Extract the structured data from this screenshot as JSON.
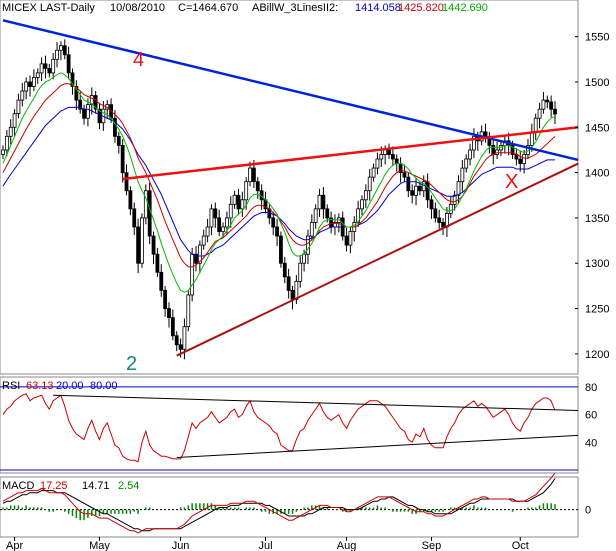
{
  "header": {
    "symbol": "MICEX LAST-Daily",
    "date": "10/08/2010",
    "close_label": "C=1464.670",
    "indicator_name": "ABillW_3LinesII2:",
    "ind_val_1": "1414.058",
    "ind_val_2": "1425.820",
    "ind_val_3": "1442.690"
  },
  "annotations": {
    "label_4": "4",
    "label_2": "2",
    "label_x": "X"
  },
  "rsi": {
    "title": "RSI",
    "v1": "63.13",
    "v2": "20.00",
    "v3": "80.00"
  },
  "macd": {
    "title": "MACD",
    "v1": "17.25",
    "v2": "14.71",
    "v3": "2.54"
  },
  "colors": {
    "candle": "#000000",
    "ma_blue": "#0000cc",
    "ma_red": "#cc0000",
    "ma_green": "#00bb00",
    "trend_blue": "#0022dd",
    "trend_red": "#ee1111",
    "support": "#aa1111",
    "label_teal": "#118888"
  },
  "chart_data": [
    {
      "type": "candlestick",
      "name": "MICEX LAST-Daily",
      "x_ticks": [
        "Apr",
        "May",
        "Jun",
        "Jul",
        "Aug",
        "Sep",
        "Oct"
      ],
      "y_ticks": [
        1200,
        1250,
        1300,
        1350,
        1400,
        1450,
        1500,
        1550
      ],
      "ylim": [
        1180,
        1575
      ],
      "close": [
        1425,
        1440,
        1450,
        1465,
        1480,
        1490,
        1500,
        1495,
        1505,
        1510,
        1520,
        1515,
        1510,
        1525,
        1535,
        1540,
        1530,
        1510,
        1495,
        1480,
        1470,
        1460,
        1475,
        1485,
        1470,
        1455,
        1470,
        1475,
        1460,
        1440,
        1430,
        1400,
        1380,
        1360,
        1340,
        1300,
        1350,
        1380,
        1330,
        1310,
        1290,
        1270,
        1250,
        1240,
        1220,
        1210,
        1205,
        1230,
        1265,
        1310,
        1300,
        1320,
        1330,
        1340,
        1360,
        1350,
        1335,
        1340,
        1350,
        1365,
        1375,
        1360,
        1370,
        1390,
        1405,
        1390,
        1380,
        1370,
        1360,
        1350,
        1340,
        1330,
        1300,
        1285,
        1270,
        1260,
        1280,
        1300,
        1310,
        1330,
        1345,
        1360,
        1375,
        1360,
        1350,
        1340,
        1345,
        1350,
        1330,
        1320,
        1335,
        1345,
        1360,
        1370,
        1380,
        1395,
        1405,
        1415,
        1420,
        1425,
        1420,
        1415,
        1410,
        1400,
        1395,
        1380,
        1375,
        1385,
        1380,
        1390,
        1370,
        1360,
        1350,
        1345,
        1340,
        1355,
        1365,
        1375,
        1390,
        1405,
        1415,
        1425,
        1440,
        1435,
        1445,
        1440,
        1430,
        1420,
        1425,
        1430,
        1435,
        1430,
        1420,
        1415,
        1410,
        1420,
        1430,
        1445,
        1460,
        1470,
        1480,
        1478,
        1470,
        1464.67
      ],
      "ma_green": [
        1410,
        1420,
        1430,
        1440,
        1450,
        1460,
        1468,
        1475,
        1482,
        1490,
        1496,
        1500,
        1502,
        1505,
        1508,
        1510,
        1508,
        1504,
        1498,
        1492,
        1486,
        1480,
        1478,
        1476,
        1472,
        1468,
        1466,
        1464,
        1460,
        1454,
        1448,
        1440,
        1430,
        1418,
        1404,
        1390,
        1380,
        1372,
        1360,
        1348,
        1336,
        1322,
        1310,
        1298,
        1288,
        1278,
        1270,
        1268,
        1270,
        1276,
        1282,
        1290,
        1298,
        1306,
        1315,
        1322,
        1326,
        1330,
        1336,
        1342,
        1350,
        1354,
        1358,
        1364,
        1372,
        1376,
        1376,
        1374,
        1370,
        1366,
        1360,
        1354,
        1344,
        1334,
        1322,
        1312,
        1308,
        1308,
        1310,
        1316,
        1322,
        1330,
        1340,
        1346,
        1348,
        1348,
        1348,
        1348,
        1344,
        1340,
        1340,
        1342,
        1346,
        1352,
        1358,
        1366,
        1374,
        1382,
        1390,
        1398,
        1404,
        1408,
        1410,
        1410,
        1408,
        1404,
        1398,
        1394,
        1390,
        1388,
        1384,
        1378,
        1372,
        1366,
        1360,
        1358,
        1358,
        1360,
        1366,
        1374,
        1382,
        1392,
        1402,
        1410,
        1418,
        1424,
        1428,
        1428,
        1428,
        1428,
        1430,
        1430,
        1428,
        1426,
        1424,
        1422,
        1424,
        1428,
        1434,
        1442,
        1450,
        1456,
        1460,
        1462
      ],
      "ma_red": [
        1400,
        1408,
        1416,
        1424,
        1432,
        1440,
        1448,
        1455,
        1462,
        1468,
        1474,
        1480,
        1484,
        1488,
        1492,
        1496,
        1498,
        1498,
        1496,
        1494,
        1490,
        1486,
        1484,
        1482,
        1480,
        1476,
        1474,
        1472,
        1468,
        1464,
        1460,
        1454,
        1446,
        1438,
        1428,
        1416,
        1408,
        1400,
        1390,
        1380,
        1370,
        1358,
        1346,
        1336,
        1326,
        1316,
        1306,
        1300,
        1296,
        1296,
        1298,
        1302,
        1306,
        1312,
        1318,
        1324,
        1326,
        1328,
        1332,
        1336,
        1340,
        1344,
        1348,
        1352,
        1358,
        1362,
        1364,
        1364,
        1362,
        1360,
        1356,
        1352,
        1346,
        1340,
        1332,
        1326,
        1322,
        1320,
        1320,
        1322,
        1326,
        1330,
        1336,
        1340,
        1342,
        1344,
        1344,
        1344,
        1342,
        1340,
        1340,
        1340,
        1342,
        1346,
        1350,
        1356,
        1362,
        1368,
        1376,
        1384,
        1390,
        1396,
        1400,
        1402,
        1402,
        1400,
        1398,
        1396,
        1394,
        1392,
        1390,
        1386,
        1382,
        1378,
        1374,
        1370,
        1368,
        1368,
        1370,
        1374,
        1380,
        1388,
        1396,
        1402,
        1408,
        1414,
        1418,
        1420,
        1422,
        1422,
        1422,
        1422,
        1422,
        1420,
        1418,
        1416,
        1416,
        1418,
        1420,
        1424,
        1428,
        1432,
        1436,
        1440
      ],
      "ma_blue": [
        1385,
        1392,
        1398,
        1404,
        1410,
        1416,
        1422,
        1428,
        1434,
        1440,
        1446,
        1452,
        1456,
        1460,
        1464,
        1468,
        1470,
        1472,
        1472,
        1472,
        1472,
        1470,
        1470,
        1468,
        1466,
        1464,
        1462,
        1460,
        1458,
        1456,
        1452,
        1448,
        1442,
        1436,
        1428,
        1420,
        1414,
        1408,
        1400,
        1392,
        1384,
        1376,
        1366,
        1356,
        1346,
        1336,
        1326,
        1320,
        1314,
        1310,
        1308,
        1308,
        1308,
        1310,
        1312,
        1316,
        1318,
        1320,
        1324,
        1328,
        1332,
        1336,
        1340,
        1344,
        1348,
        1352,
        1354,
        1356,
        1356,
        1356,
        1354,
        1352,
        1348,
        1344,
        1338,
        1334,
        1330,
        1328,
        1326,
        1326,
        1328,
        1330,
        1334,
        1336,
        1338,
        1340,
        1340,
        1340,
        1340,
        1340,
        1340,
        1340,
        1342,
        1344,
        1346,
        1350,
        1354,
        1358,
        1364,
        1370,
        1376,
        1380,
        1384,
        1388,
        1390,
        1390,
        1390,
        1390,
        1388,
        1386,
        1384,
        1382,
        1380,
        1378,
        1376,
        1374,
        1374,
        1374,
        1376,
        1378,
        1382,
        1386,
        1390,
        1394,
        1398,
        1400,
        1402,
        1404,
        1406,
        1406,
        1406,
        1406,
        1406,
        1404,
        1404,
        1404,
        1404,
        1406,
        1408,
        1410,
        1412,
        1414,
        1414,
        1414
      ],
      "trendlines": [
        {
          "name": "4",
          "color": "blue",
          "from": [
            0,
            1568
          ],
          "to": [
            149,
            1414
          ]
        },
        {
          "name": "resistance",
          "color": "red",
          "from": [
            31,
            1393
          ],
          "to": [
            149,
            1450
          ]
        },
        {
          "name": "2 / X",
          "color": "support",
          "from": [
            45,
            1198
          ],
          "to": [
            149,
            1410
          ]
        }
      ]
    },
    {
      "type": "line",
      "name": "RSI",
      "y_ticks": [
        40,
        60,
        80
      ],
      "ylim": [
        20,
        85
      ],
      "levels": [
        20,
        80
      ],
      "values": [
        60,
        64,
        66,
        70,
        72,
        74,
        75,
        70,
        72,
        73,
        74,
        68,
        64,
        70,
        72,
        74,
        66,
        56,
        50,
        46,
        44,
        42,
        50,
        56,
        48,
        42,
        50,
        54,
        46,
        38,
        36,
        30,
        28,
        27,
        27,
        26,
        40,
        48,
        38,
        34,
        32,
        30,
        30,
        29,
        28,
        28,
        28,
        34,
        44,
        54,
        50,
        54,
        56,
        58,
        62,
        58,
        54,
        56,
        58,
        62,
        64,
        58,
        60,
        66,
        70,
        62,
        58,
        56,
        54,
        52,
        48,
        46,
        38,
        36,
        34,
        34,
        42,
        48,
        50,
        56,
        60,
        64,
        68,
        62,
        58,
        56,
        58,
        60,
        54,
        50,
        56,
        60,
        64,
        66,
        68,
        70,
        70,
        70,
        68,
        66,
        62,
        58,
        54,
        50,
        48,
        42,
        40,
        46,
        44,
        50,
        42,
        38,
        36,
        36,
        36,
        44,
        50,
        54,
        60,
        64,
        66,
        68,
        70,
        66,
        68,
        66,
        62,
        58,
        60,
        62,
        64,
        60,
        54,
        50,
        48,
        54,
        58,
        64,
        68,
        70,
        72,
        72,
        70,
        63.13
      ],
      "trendlines": [
        {
          "from": [
            13,
            74
          ],
          "to": [
            149,
            63
          ]
        },
        {
          "from": [
            45,
            29
          ],
          "to": [
            149,
            45
          ]
        }
      ]
    },
    {
      "type": "line",
      "name": "MACD",
      "y_ticks": [
        0
      ],
      "ylim": [
        -12,
        14
      ],
      "macd": [
        4,
        5,
        6,
        7,
        8,
        8,
        9,
        9,
        9,
        9,
        10,
        9,
        8,
        8,
        8,
        8,
        7,
        5,
        3,
        1,
        -1,
        -2,
        -2,
        -2,
        -3,
        -4,
        -4,
        -4,
        -5,
        -6,
        -7,
        -8,
        -9,
        -10,
        -10,
        -11,
        -10,
        -9,
        -9,
        -9,
        -9,
        -9,
        -9,
        -9,
        -9,
        -9,
        -8,
        -7,
        -5,
        -3,
        -2,
        -1,
        0,
        1,
        2,
        2,
        2,
        2,
        2,
        3,
        3,
        3,
        3,
        4,
        4,
        4,
        3,
        2,
        1,
        0,
        -1,
        -2,
        -3,
        -4,
        -5,
        -5,
        -4,
        -3,
        -2,
        -1,
        0,
        1,
        2,
        2,
        2,
        1,
        1,
        1,
        0,
        -1,
        -1,
        0,
        1,
        2,
        3,
        4,
        5,
        6,
        6,
        6,
        6,
        5,
        4,
        3,
        2,
        1,
        0,
        -1,
        -1,
        -1,
        -2,
        -2,
        -3,
        -3,
        -3,
        -2,
        -1,
        0,
        1,
        2,
        3,
        4,
        5,
        5,
        6,
        6,
        5,
        5,
        5,
        5,
        5,
        5,
        4,
        4,
        4,
        4,
        5,
        6,
        7,
        9,
        11,
        13,
        15,
        17.25
      ],
      "signal": [
        3,
        4,
        4,
        5,
        6,
        7,
        7,
        8,
        8,
        8,
        9,
        9,
        9,
        9,
        8,
        8,
        8,
        7,
        6,
        5,
        4,
        3,
        2,
        1,
        0,
        -1,
        -2,
        -2,
        -3,
        -4,
        -5,
        -6,
        -7,
        -8,
        -9,
        -9,
        -10,
        -10,
        -10,
        -9,
        -9,
        -9,
        -9,
        -9,
        -9,
        -9,
        -9,
        -8,
        -7,
        -6,
        -5,
        -4,
        -3,
        -2,
        -1,
        0,
        1,
        1,
        1,
        2,
        2,
        2,
        3,
        3,
        3,
        3,
        3,
        3,
        2,
        2,
        1,
        0,
        -1,
        -2,
        -3,
        -3,
        -3,
        -3,
        -3,
        -2,
        -2,
        -1,
        0,
        1,
        1,
        1,
        1,
        1,
        1,
        0,
        0,
        0,
        0,
        1,
        2,
        3,
        4,
        4,
        5,
        5,
        6,
        6,
        5,
        4,
        3,
        2,
        2,
        1,
        0,
        0,
        -1,
        -1,
        -2,
        -2,
        -2,
        -2,
        -2,
        -1,
        0,
        1,
        2,
        3,
        3,
        4,
        5,
        5,
        5,
        5,
        5,
        5,
        5,
        5,
        5,
        4,
        4,
        4,
        4,
        5,
        6,
        7,
        8,
        10,
        12,
        14.71
      ],
      "histogram": [
        1,
        1,
        2,
        2,
        2,
        1,
        2,
        1,
        1,
        1,
        1,
        0,
        -1,
        -1,
        0,
        0,
        -1,
        -2,
        -3,
        -4,
        -5,
        -5,
        -4,
        -3,
        -3,
        -3,
        -2,
        -2,
        -2,
        -2,
        -2,
        -2,
        -2,
        -2,
        -1,
        -2,
        0,
        1,
        1,
        0,
        0,
        0,
        0,
        0,
        0,
        0,
        1,
        1,
        2,
        3,
        3,
        3,
        3,
        3,
        3,
        2,
        1,
        1,
        1,
        1,
        1,
        1,
        0,
        1,
        1,
        1,
        0,
        -1,
        -1,
        -2,
        -2,
        -2,
        -2,
        -2,
        -2,
        -2,
        -1,
        0,
        1,
        1,
        2,
        2,
        2,
        1,
        1,
        0,
        0,
        0,
        -1,
        -1,
        -1,
        0,
        1,
        1,
        1,
        1,
        1,
        2,
        1,
        1,
        0,
        -1,
        -1,
        -1,
        -1,
        -1,
        -2,
        -2,
        -1,
        -1,
        -1,
        -1,
        -1,
        -1,
        -1,
        0,
        1,
        1,
        1,
        1,
        1,
        1,
        2,
        1,
        1,
        1,
        0,
        0,
        0,
        0,
        0,
        0,
        -1,
        0,
        0,
        0,
        1,
        1,
        1,
        2,
        3,
        3,
        3,
        2.54
      ]
    }
  ]
}
